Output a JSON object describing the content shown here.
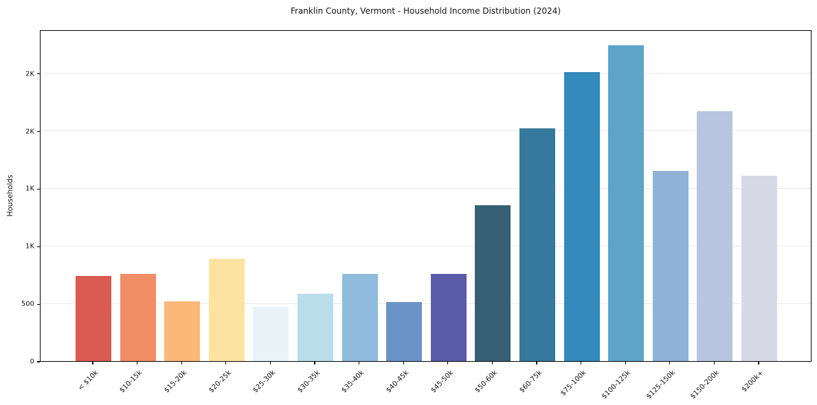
{
  "chart_data": {
    "type": "bar",
    "title": "Franklin County, Vermont - Household Income Distribution (2024)",
    "xlabel": "",
    "ylabel": "Households",
    "categories": [
      "< $10k",
      "$10-15k",
      "$15-20k",
      "$20-25k",
      "$25-30k",
      "$30-35k",
      "$35-40k",
      "$40-45k",
      "$45-50k",
      "$50-60k",
      "$60-75k",
      "$75-100k",
      "$100-125k",
      "$125-150k",
      "$150-200k",
      "$200k+"
    ],
    "values": [
      740,
      755,
      520,
      890,
      470,
      585,
      755,
      515,
      760,
      1355,
      2020,
      2510,
      2740,
      1650,
      2170,
      1610
    ],
    "bar_colors": [
      "#d95b51",
      "#f28e66",
      "#fab978",
      "#fce3a2",
      "#e9f3f7",
      "#b9dde9",
      "#8fbcdc",
      "#6b93c7",
      "#5a5caa",
      "#365f73",
      "#36799c",
      "#3489bd",
      "#5ea4c9",
      "#8fb3d6",
      "#b7c6de",
      "#d7d9e6"
    ],
    "ylim": [
      0,
      2880
    ],
    "yticks": {
      "values": [
        0,
        500,
        1000,
        1500,
        2000,
        2500
      ],
      "labels": [
        "0",
        "500",
        "1K",
        "1K",
        "2K",
        "2K"
      ]
    },
    "grid": true,
    "legend_position": "none"
  }
}
